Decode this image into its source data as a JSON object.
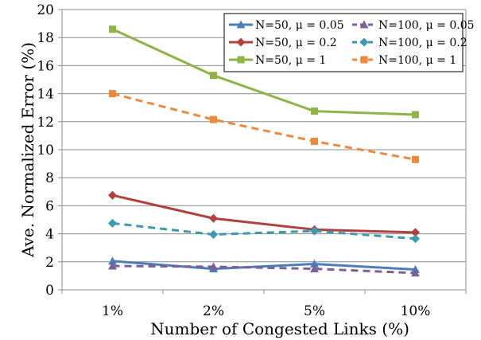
{
  "chart_data": {
    "type": "line",
    "title": "",
    "xlabel": "Number of Congested Links (%)",
    "ylabel": "Ave. Normalized Error (%)",
    "categories": [
      "1%",
      "2%",
      "5%",
      "10%"
    ],
    "ylim": [
      0,
      20
    ],
    "yticks": [
      0,
      2,
      4,
      6,
      8,
      10,
      12,
      14,
      16,
      18,
      20
    ],
    "grid": "horizontal",
    "legend_position": "top-right",
    "series": [
      {
        "name": "N=50, μ = 0.05",
        "values": [
          2.05,
          1.5,
          1.85,
          1.45
        ],
        "color": "#4a7ebb",
        "dash": false,
        "marker": "triangle"
      },
      {
        "name": "N=100, μ = 0.05",
        "values": [
          1.7,
          1.65,
          1.5,
          1.2
        ],
        "color": "#7d5f9a",
        "dash": true,
        "marker": "triangle"
      },
      {
        "name": "N=50, μ = 0.2",
        "values": [
          6.75,
          5.1,
          4.3,
          4.1
        ],
        "color": "#b3403d",
        "dash": false,
        "marker": "diamond"
      },
      {
        "name": "N=100, μ = 0.2",
        "values": [
          4.75,
          3.95,
          4.2,
          3.65
        ],
        "color": "#3a9bb0",
        "dash": true,
        "marker": "diamond"
      },
      {
        "name": "N=50, μ = 1",
        "values": [
          18.6,
          15.3,
          12.75,
          12.5
        ],
        "color": "#8eb445",
        "dash": false,
        "marker": "square"
      },
      {
        "name": "N=100, μ = 1",
        "values": [
          14.0,
          12.15,
          10.6,
          9.3
        ],
        "color": "#ee8a3c",
        "dash": true,
        "marker": "square"
      }
    ]
  }
}
